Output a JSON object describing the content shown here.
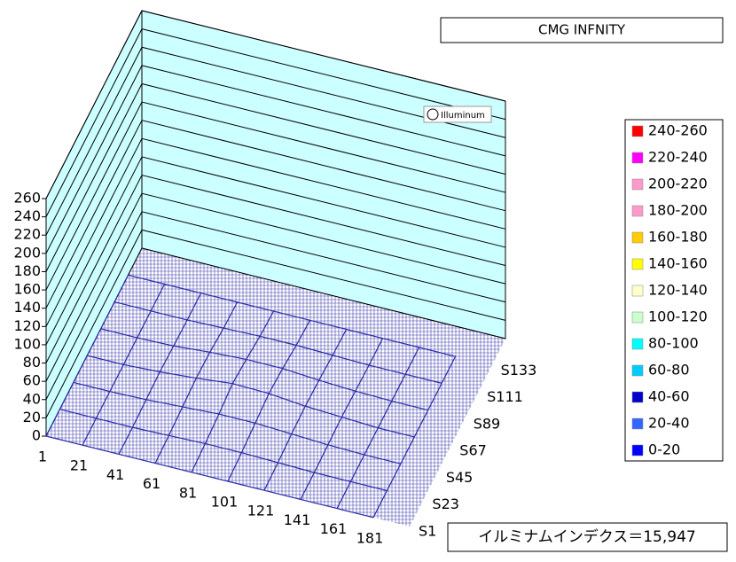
{
  "chart_data": {
    "type": "surface3d",
    "title": "CMG INFNITY",
    "annotation": "イルミナムインデクス＝15,947",
    "watermark": "Illuminum",
    "categories": [
      "1",
      "21",
      "41",
      "61",
      "81",
      "101",
      "121",
      "141",
      "161",
      "181"
    ],
    "series": [
      {
        "name": "S1",
        "values": [
          0,
          0,
          0,
          0,
          0,
          0,
          0,
          0,
          0,
          0
        ]
      },
      {
        "name": "S23",
        "values": [
          0,
          0,
          0,
          1,
          2,
          2,
          1,
          0,
          0,
          0
        ]
      },
      {
        "name": "S45",
        "values": [
          0,
          0,
          1,
          3,
          5,
          5,
          3,
          1,
          0,
          0
        ]
      },
      {
        "name": "S67",
        "values": [
          0,
          0,
          2,
          5,
          9,
          8,
          4,
          2,
          0,
          0
        ]
      },
      {
        "name": "S89",
        "values": [
          0,
          0,
          1,
          4,
          6,
          6,
          3,
          1,
          0,
          0
        ]
      },
      {
        "name": "S111",
        "values": [
          0,
          0,
          0,
          1,
          2,
          2,
          1,
          0,
          0,
          0
        ]
      },
      {
        "name": "S133",
        "values": [
          0,
          0,
          0,
          0,
          0,
          0,
          0,
          0,
          0,
          0
        ]
      }
    ],
    "zlim": [
      0,
      260
    ],
    "zticks": [
      0,
      20,
      40,
      60,
      80,
      100,
      120,
      140,
      160,
      180,
      200,
      220,
      240,
      260
    ],
    "grid": true,
    "wall_color": "#ccffff",
    "mesh_color": "#2a2aa8",
    "legend": [
      {
        "name": "240-260",
        "color": "#ff0000"
      },
      {
        "name": "220-240",
        "color": "#ff00ff"
      },
      {
        "name": "200-220",
        "color": "#ff99cc"
      },
      {
        "name": "180-200",
        "color": "#ff99cc"
      },
      {
        "name": "160-180",
        "color": "#ffcc00"
      },
      {
        "name": "140-160",
        "color": "#ffff00"
      },
      {
        "name": "120-140",
        "color": "#ffffcc"
      },
      {
        "name": "100-120",
        "color": "#ccffcc"
      },
      {
        "name": "80-100",
        "color": "#00ffff"
      },
      {
        "name": "60-80",
        "color": "#00ccff"
      },
      {
        "name": "40-60",
        "color": "#0000cc"
      },
      {
        "name": "20-40",
        "color": "#3366ff"
      },
      {
        "name": "0-20",
        "color": "#0000ff"
      }
    ]
  }
}
